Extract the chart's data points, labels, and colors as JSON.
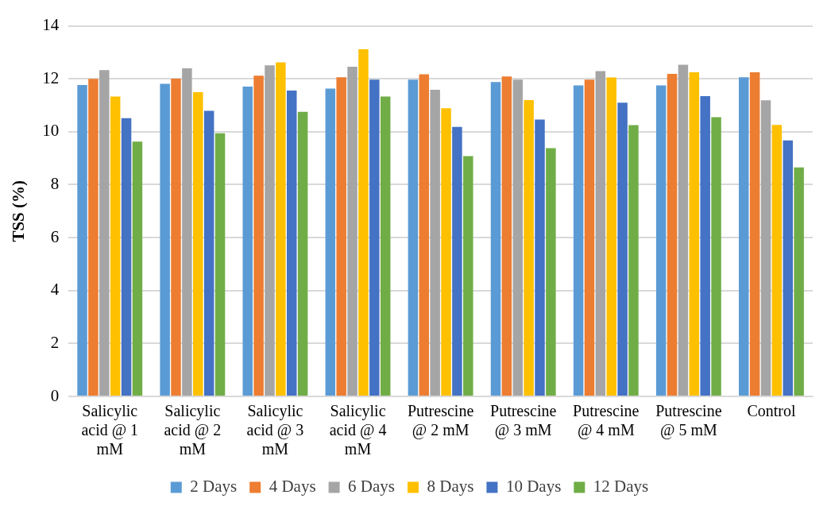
{
  "chart_data": {
    "type": "bar",
    "ylabel": "TSS (%)",
    "categories": [
      "Salicylic acid @ 1 mM",
      "Salicylic acid @ 2 mM",
      "Salicylic acid @ 3 mM",
      "Salicylic acid @ 4 mM",
      "Putrescine @ 2 mM",
      "Putrescine @ 3 mM",
      "Putrescine @ 4 mM",
      "Putrescine @ 5 mM",
      "Control"
    ],
    "series": [
      {
        "name": "2 Days",
        "color": "#5b9bd5",
        "values": [
          11.77,
          11.81,
          11.71,
          11.63,
          11.97,
          11.88,
          11.75,
          11.75,
          12.06
        ]
      },
      {
        "name": "4 Days",
        "color": "#ed7d31",
        "values": [
          12.0,
          12.01,
          12.12,
          12.06,
          12.17,
          12.09,
          11.97,
          12.19,
          12.25
        ]
      },
      {
        "name": "6 Days",
        "color": "#a5a5a5",
        "values": [
          12.33,
          12.4,
          12.51,
          12.46,
          11.59,
          11.97,
          12.29,
          12.53,
          11.19
        ]
      },
      {
        "name": "8 Days",
        "color": "#ffc000",
        "values": [
          11.33,
          11.5,
          12.62,
          13.12,
          10.89,
          11.2,
          12.05,
          12.25,
          10.26
        ]
      },
      {
        "name": "10 Days",
        "color": "#4472c4",
        "values": [
          10.51,
          10.79,
          11.56,
          11.97,
          10.18,
          10.46,
          11.1,
          11.35,
          9.67
        ]
      },
      {
        "name": "12 Days",
        "color": "#70ad47",
        "values": [
          9.63,
          9.94,
          10.75,
          11.33,
          9.08,
          9.38,
          10.25,
          10.55,
          8.65
        ]
      }
    ],
    "ylim": [
      0,
      14
    ],
    "yticks": [
      0,
      2,
      4,
      6,
      8,
      10,
      12,
      14
    ],
    "grid": "y",
    "legend": "bottom"
  }
}
